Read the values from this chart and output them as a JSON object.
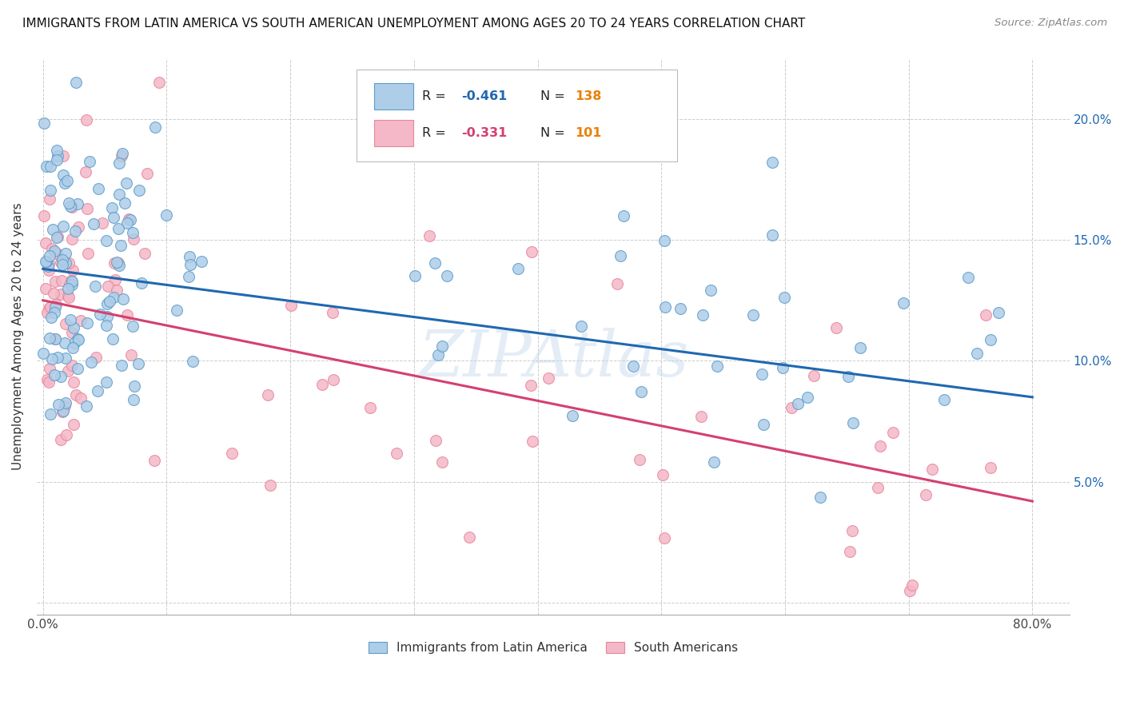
{
  "title": "IMMIGRANTS FROM LATIN AMERICA VS SOUTH AMERICAN UNEMPLOYMENT AMONG AGES 20 TO 24 YEARS CORRELATION CHART",
  "source": "Source: ZipAtlas.com",
  "ylabel": "Unemployment Among Ages 20 to 24 years",
  "y_ticks": [
    0.0,
    0.05,
    0.1,
    0.15,
    0.2
  ],
  "y_tick_labels": [
    "",
    "5.0%",
    "10.0%",
    "15.0%",
    "20.0%"
  ],
  "x_ticks": [
    0.0,
    0.1,
    0.2,
    0.3,
    0.4,
    0.5,
    0.6,
    0.7,
    0.8
  ],
  "blue_R": "-0.461",
  "blue_N": "138",
  "pink_R": "-0.331",
  "pink_N": "101",
  "blue_color": "#aecde8",
  "blue_edge": "#5b9dc9",
  "pink_color": "#f4b8c8",
  "pink_edge": "#e8879a",
  "blue_line_color": "#2068b0",
  "pink_line_color": "#d44070",
  "N_color": "#e8820a",
  "watermark": "ZIPAtlas",
  "legend_label_blue": "Immigrants from Latin America",
  "legend_label_pink": "South Americans",
  "blue_line_y_start": 0.138,
  "blue_line_y_end": 0.085,
  "pink_line_y_start": 0.125,
  "pink_line_y_end": 0.042,
  "ylim": [
    -0.005,
    0.225
  ],
  "xlim": [
    -0.005,
    0.83
  ],
  "marker_size": 100
}
